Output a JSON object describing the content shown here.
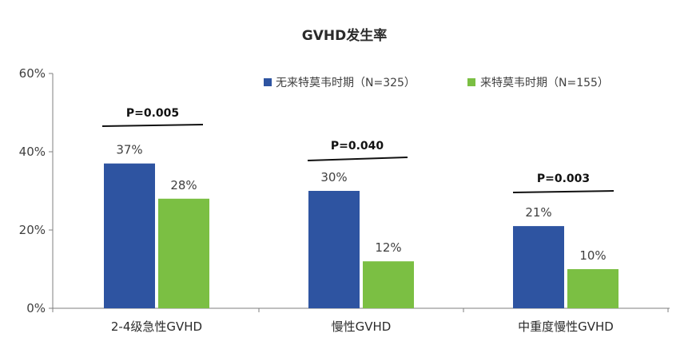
{
  "chart_data": {
    "type": "bar",
    "title": "GVHD发生率",
    "categories": [
      "2-4级急性GVHD",
      "慢性GVHD",
      "中重度慢性GVHD"
    ],
    "series": [
      {
        "name": "无来特莫韦时期（N=325）",
        "values": [
          37,
          30,
          21
        ],
        "labels": [
          "37%",
          "30%",
          "21%"
        ],
        "color": "#2e54a1"
      },
      {
        "name": "来特莫韦时期（N=155）",
        "values": [
          28,
          12,
          10
        ],
        "labels": [
          "28%",
          "12%",
          "10%"
        ],
        "color": "#7bbf43"
      }
    ],
    "ylim": [
      0,
      60
    ],
    "yticks": [
      {
        "value": 0,
        "label": "0%"
      },
      {
        "value": 20,
        "label": "20%"
      },
      {
        "value": 40,
        "label": "40%"
      },
      {
        "value": 60,
        "label": "60%"
      }
    ],
    "p_values": [
      "P=0.005",
      "P=0.040",
      "P=0.003"
    ],
    "legend_position": "top-right",
    "grid": false
  }
}
